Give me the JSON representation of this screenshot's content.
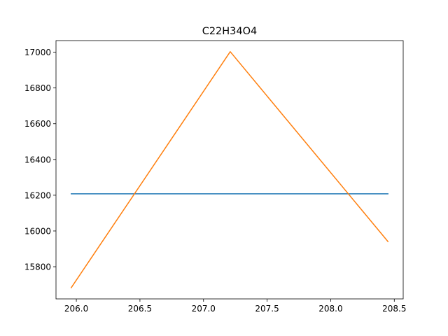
{
  "chart_data": {
    "type": "line",
    "title": "C22H34O4",
    "xlabel": "",
    "ylabel": "",
    "xlim": [
      205.84,
      208.57
    ],
    "ylim": [
      15620,
      17065
    ],
    "xticks": [
      206.0,
      206.5,
      207.0,
      207.5,
      208.0,
      208.5
    ],
    "xtick_labels": [
      "206.0",
      "206.5",
      "207.0",
      "207.5",
      "208.0",
      "208.5"
    ],
    "yticks": [
      15800,
      16000,
      16200,
      16400,
      16600,
      16800,
      17000
    ],
    "ytick_labels": [
      "15800",
      "16000",
      "16200",
      "16400",
      "16600",
      "16800",
      "17000"
    ],
    "grid": false,
    "series": [
      {
        "color": "#1f77b4",
        "x": [
          205.96,
          208.45
        ],
        "y": [
          16208,
          16208
        ]
      },
      {
        "color": "#ff7f0e",
        "x": [
          205.96,
          207.21,
          208.45
        ],
        "y": [
          15683,
          17003,
          15941
        ]
      }
    ]
  }
}
